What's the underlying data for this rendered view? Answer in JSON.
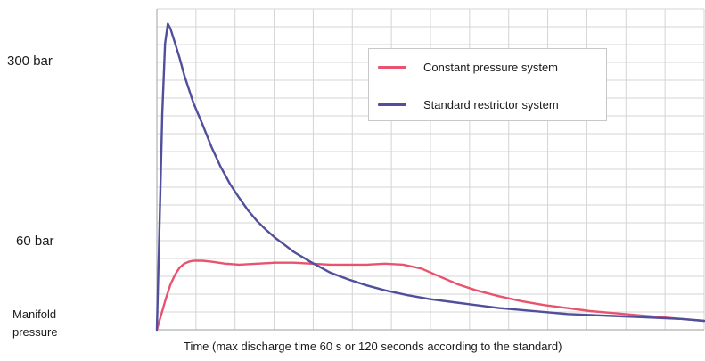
{
  "chart_data": {
    "type": "line",
    "title": "",
    "xlabel": "Time (max discharge time 60 s or 120 seconds according to the standard)",
    "ylabel": "Manifold pressure",
    "ytick_labels": [
      {
        "value": 300,
        "label": "300 bar"
      },
      {
        "value": 60,
        "label": "60 bar"
      }
    ],
    "xlim": [
      0,
      120
    ],
    "ylim": [
      0,
      325
    ],
    "grid": true,
    "legend_position": "top-right",
    "series": [
      {
        "name": "Constant pressure system",
        "color": "#e8536e",
        "x": [
          0,
          1,
          2,
          3,
          4,
          5,
          6,
          7,
          8,
          10,
          12,
          15,
          18,
          22,
          26,
          30,
          34,
          38,
          42,
          46,
          50,
          54,
          58,
          62,
          66,
          70,
          75,
          80,
          85,
          90,
          95,
          100,
          105,
          110,
          115,
          120
        ],
        "y": [
          0,
          16,
          32,
          46,
          56,
          63,
          67,
          69,
          70,
          70,
          69,
          67,
          66,
          67,
          68,
          68,
          67,
          66,
          66,
          66,
          67,
          66,
          62,
          54,
          46,
          40,
          34,
          29,
          25,
          22,
          19,
          17,
          15,
          13,
          11,
          9
        ]
      },
      {
        "name": "Standard restrictor system",
        "color": "#4f4f9c",
        "x": [
          0,
          0.6,
          1.2,
          1.8,
          2.4,
          3,
          4,
          5,
          6,
          7,
          8,
          10,
          12,
          14,
          16,
          18,
          20,
          22,
          24,
          26,
          28,
          30,
          34,
          38,
          42,
          46,
          50,
          55,
          60,
          65,
          70,
          75,
          80,
          85,
          90,
          95,
          100,
          105,
          110,
          115,
          120
        ],
        "y": [
          0,
          110,
          220,
          290,
          310,
          305,
          290,
          275,
          258,
          244,
          230,
          208,
          185,
          165,
          148,
          134,
          121,
          110,
          101,
          93,
          86,
          79,
          68,
          58,
          51,
          45,
          40,
          35,
          31,
          28,
          25,
          22,
          20,
          18,
          16,
          15,
          14,
          13,
          12,
          11,
          9
        ]
      }
    ]
  }
}
